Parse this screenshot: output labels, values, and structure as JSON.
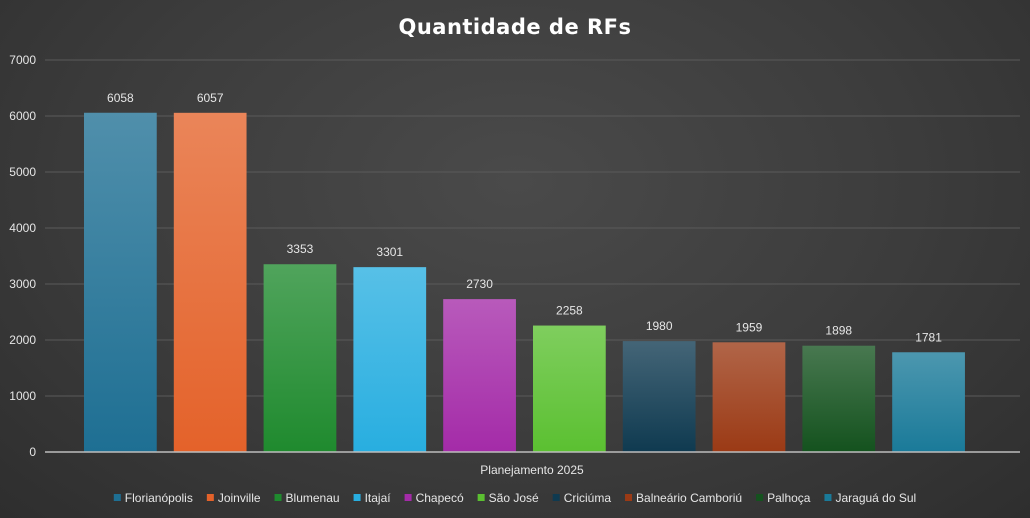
{
  "chart_data": {
    "type": "bar",
    "title": "Quantidade de RFs",
    "categories": [
      "Planejamento 2025"
    ],
    "xlabel": "",
    "ylabel": "",
    "ylim": [
      0,
      7000
    ],
    "yticks": [
      0,
      1000,
      2000,
      3000,
      4000,
      5000,
      6000,
      7000
    ],
    "grid": true,
    "legend_position": "bottom",
    "series": [
      {
        "name": "Florianópolis",
        "values": [
          6058
        ],
        "color": "#1e6f93"
      },
      {
        "name": "Joinville",
        "values": [
          6057
        ],
        "color": "#e4622a"
      },
      {
        "name": "Blumenau",
        "values": [
          3353
        ],
        "color": "#1f8a2e"
      },
      {
        "name": "Itajaí",
        "values": [
          3301
        ],
        "color": "#28aee0"
      },
      {
        "name": "Chapecó",
        "values": [
          2730
        ],
        "color": "#a42ba8"
      },
      {
        "name": "São José",
        "values": [
          2258
        ],
        "color": "#5bc031"
      },
      {
        "name": "Criciúma",
        "values": [
          1980
        ],
        "color": "#0f3a50"
      },
      {
        "name": "Balneário Camboriú",
        "values": [
          1959
        ],
        "color": "#9b3a15"
      },
      {
        "name": "Palhoça",
        "values": [
          1898
        ],
        "color": "#14521e"
      },
      {
        "name": "Jaraguá do Sul",
        "values": [
          1781
        ],
        "color": "#1a7a99"
      }
    ]
  }
}
